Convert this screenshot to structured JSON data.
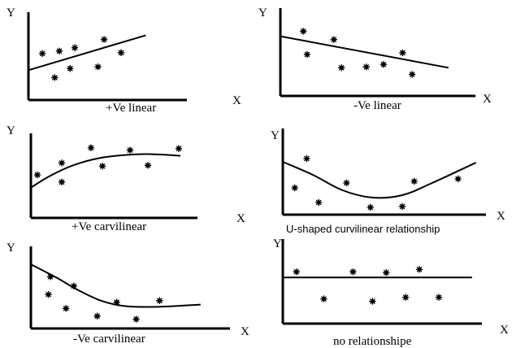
{
  "page": {
    "background": "#ffffff",
    "ink": "#000000"
  },
  "chart_data": [
    {
      "type": "scatter",
      "caption": "+Ve linear",
      "xlabel": "X",
      "ylabel": "Y",
      "xlim": [
        0,
        10
      ],
      "ylim": [
        0,
        10
      ],
      "points": [
        [
          0.9,
          5.6
        ],
        [
          1.7,
          2.7
        ],
        [
          2.0,
          5.9
        ],
        [
          2.7,
          3.8
        ],
        [
          3.0,
          6.3
        ],
        [
          4.5,
          4.0
        ],
        [
          4.9,
          7.3
        ],
        [
          6.0,
          5.7
        ]
      ],
      "trend": [
        [
          0,
          3.6
        ],
        [
          7.6,
          7.8
        ]
      ]
    },
    {
      "type": "scatter",
      "caption": "-Ve linear",
      "xlabel": "X",
      "ylabel": "Y",
      "xlim": [
        0,
        10
      ],
      "ylim": [
        0,
        10
      ],
      "points": [
        [
          1.2,
          7.8
        ],
        [
          1.4,
          5.0
        ],
        [
          2.8,
          6.8
        ],
        [
          3.2,
          3.4
        ],
        [
          4.5,
          3.5
        ],
        [
          5.4,
          3.8
        ],
        [
          6.4,
          5.2
        ],
        [
          6.9,
          2.6
        ]
      ],
      "trend": [
        [
          0,
          7.2
        ],
        [
          8.8,
          3.4
        ]
      ]
    },
    {
      "type": "scatter",
      "caption": "+Ve carvilinear",
      "xlabel": "X",
      "ylabel": "Y",
      "xlim": [
        0,
        10
      ],
      "ylim": [
        0,
        10
      ],
      "points": [
        [
          0.4,
          5.4
        ],
        [
          1.9,
          6.9
        ],
        [
          1.9,
          4.5
        ],
        [
          3.7,
          8.8
        ],
        [
          4.4,
          6.5
        ],
        [
          6.1,
          8.5
        ],
        [
          7.2,
          6.6
        ],
        [
          9.1,
          8.7
        ]
      ],
      "trend": [
        [
          0,
          3.8
        ],
        [
          1.2,
          5.3
        ],
        [
          2.6,
          6.6
        ],
        [
          4.2,
          7.5
        ],
        [
          5.8,
          7.9
        ],
        [
          7.4,
          8.0
        ],
        [
          9.2,
          7.8
        ]
      ]
    },
    {
      "type": "scatter",
      "caption": "U-shaped curvilinear relationship",
      "xlabel": "X",
      "ylabel": "Y",
      "xlim": [
        0,
        10
      ],
      "ylim": [
        0,
        10
      ],
      "points": [
        [
          0.6,
          3.3
        ],
        [
          1.2,
          6.9
        ],
        [
          1.8,
          1.5
        ],
        [
          3.2,
          3.9
        ],
        [
          4.4,
          0.9
        ],
        [
          6.0,
          1.0
        ],
        [
          6.6,
          4.1
        ],
        [
          8.8,
          4.4
        ]
      ],
      "trend": [
        [
          0,
          6.5
        ],
        [
          1.5,
          4.9
        ],
        [
          3.0,
          3.0
        ],
        [
          4.5,
          2.1
        ],
        [
          6.0,
          2.4
        ],
        [
          7.5,
          3.9
        ],
        [
          9.7,
          6.4
        ]
      ]
    },
    {
      "type": "scatter",
      "caption": "-Ve carvilinear",
      "xlabel": "X",
      "ylabel": "Y",
      "xlim": [
        0,
        10
      ],
      "ylim": [
        0,
        10
      ],
      "points": [
        [
          0.9,
          4.4
        ],
        [
          1.0,
          6.7
        ],
        [
          1.8,
          2.6
        ],
        [
          2.2,
          5.5
        ],
        [
          3.4,
          1.6
        ],
        [
          4.4,
          3.4
        ],
        [
          5.4,
          1.2
        ],
        [
          6.6,
          3.6
        ]
      ],
      "trend": [
        [
          0,
          8.3
        ],
        [
          1.3,
          6.6
        ],
        [
          2.4,
          5.0
        ],
        [
          3.6,
          3.6
        ],
        [
          4.8,
          2.9
        ],
        [
          6.5,
          2.8
        ],
        [
          8.7,
          3.1
        ]
      ]
    },
    {
      "type": "scatter",
      "caption": "no relationshipe",
      "xlabel": "X",
      "ylabel": "Y",
      "xlim": [
        0,
        10
      ],
      "ylim": [
        0,
        10
      ],
      "points": [
        [
          0.7,
          6.5
        ],
        [
          2.1,
          3.1
        ],
        [
          3.6,
          6.5
        ],
        [
          4.6,
          2.8
        ],
        [
          5.3,
          6.4
        ],
        [
          6.3,
          3.3
        ],
        [
          7.0,
          6.8
        ],
        [
          8.0,
          3.3
        ]
      ],
      "trend": [
        [
          0,
          5.8
        ],
        [
          9.7,
          5.8
        ]
      ]
    }
  ]
}
